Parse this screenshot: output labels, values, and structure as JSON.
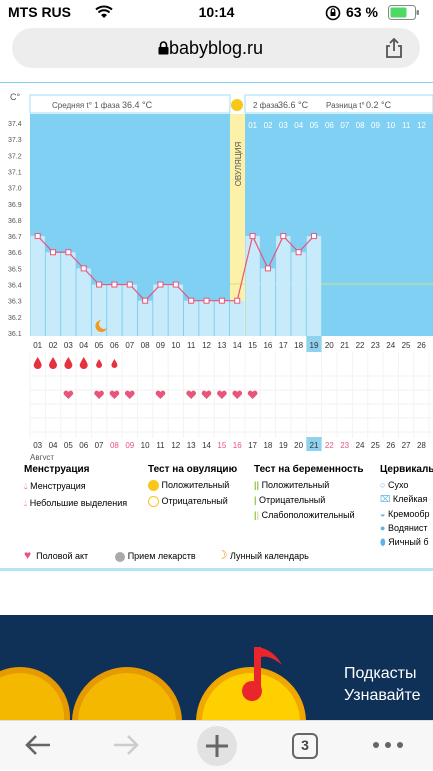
{
  "status_bar": {
    "carrier": "MTS RUS",
    "time": "10:14",
    "battery": "63 %"
  },
  "browser": {
    "url": "babyblog.ru",
    "tab_count": "3"
  },
  "chart": {
    "y_unit": "C°",
    "phase1_label": "Средняя t° 1 фаза",
    "phase1_value": "36.4 °C",
    "phase2_label": "2 фаза",
    "phase2_value": "36.6 °C",
    "diff_label": "Разница t°",
    "diff_value": "0.2 °C",
    "ovulation_label": "ОВУЛЯЦИЯ",
    "month_label": "Август",
    "colors": {
      "bg_blue": "#7fd0f3",
      "bar_fill": "#c8ebfb",
      "line": "#e8557b",
      "ovulation": "#fdf0a8",
      "sun": "#f9c816"
    }
  },
  "chart_data": {
    "type": "line",
    "title": "",
    "ylabel": "C°",
    "ylim": [
      36.1,
      37.4
    ],
    "y_ticks": [
      "37.4",
      "37.3",
      "37.2",
      "37.1",
      "37.0",
      "36.9",
      "36.8",
      "36.7",
      "36.6",
      "36.5",
      "36.4",
      "36.3",
      "36.2",
      "36.1"
    ],
    "cycle_days": [
      "01",
      "02",
      "03",
      "04",
      "05",
      "06",
      "07",
      "08",
      "09",
      "10",
      "11",
      "12",
      "13",
      "14",
      "15",
      "16",
      "17",
      "18",
      "19",
      "20",
      "21",
      "22",
      "23",
      "24",
      "25",
      "26"
    ],
    "phase2_days": [
      "01",
      "02",
      "03",
      "04",
      "05",
      "06",
      "07",
      "08",
      "09",
      "10",
      "11",
      "12"
    ],
    "dates": [
      "03",
      "04",
      "05",
      "06",
      "07",
      "08",
      "09",
      "10",
      "11",
      "12",
      "13",
      "14",
      "15",
      "16",
      "17",
      "18",
      "19",
      "20",
      "21",
      "22",
      "23",
      "24",
      "25",
      "26",
      "27",
      "28"
    ],
    "date_colors": [
      "#333",
      "#333",
      "#333",
      "#333",
      "#333",
      "#e8557b",
      "#e8557b",
      "#333",
      "#333",
      "#333",
      "#333",
      "#333",
      "#e8557b",
      "#e8557b",
      "#333",
      "#333",
      "#333",
      "#333",
      "#333",
      "#e8557b",
      "#e8557b",
      "#333",
      "#333",
      "#333",
      "#333",
      "#333"
    ],
    "temperatures": [
      36.7,
      36.6,
      36.6,
      36.5,
      36.4,
      36.4,
      36.4,
      36.3,
      36.4,
      36.4,
      36.3,
      36.3,
      36.3,
      36.3,
      36.7,
      36.5,
      36.7,
      36.6,
      36.7
    ],
    "ovulation_day": 14,
    "today_day": 19,
    "menstruation": [
      "big",
      "big",
      "big",
      "big",
      "small",
      "small"
    ],
    "intercourse_days": [
      3,
      5,
      6,
      7,
      9,
      11,
      12,
      13,
      14,
      15
    ]
  },
  "legend": {
    "menstruation": {
      "title": "Менструация",
      "items": [
        "Менструация",
        "Небольшие выделения"
      ]
    },
    "ovulation_test": {
      "title": "Тест на овуляцию",
      "items": [
        "Положительный",
        "Отрицательный"
      ]
    },
    "pregnancy_test": {
      "title": "Тест на беременность",
      "items": [
        "Положительный",
        "Отрицательный",
        "Слабоположительный"
      ]
    },
    "cervical": {
      "title": "Цервикальн",
      "items": [
        "Сухо",
        "Клейкая",
        "Кремообр",
        "Водянист",
        "Яичный б"
      ]
    },
    "bottom": [
      "Половой акт",
      "Прием лекарств",
      "Лунный календарь"
    ]
  },
  "promo": {
    "line1": "Подкасты",
    "line2": "Узнавайте"
  }
}
